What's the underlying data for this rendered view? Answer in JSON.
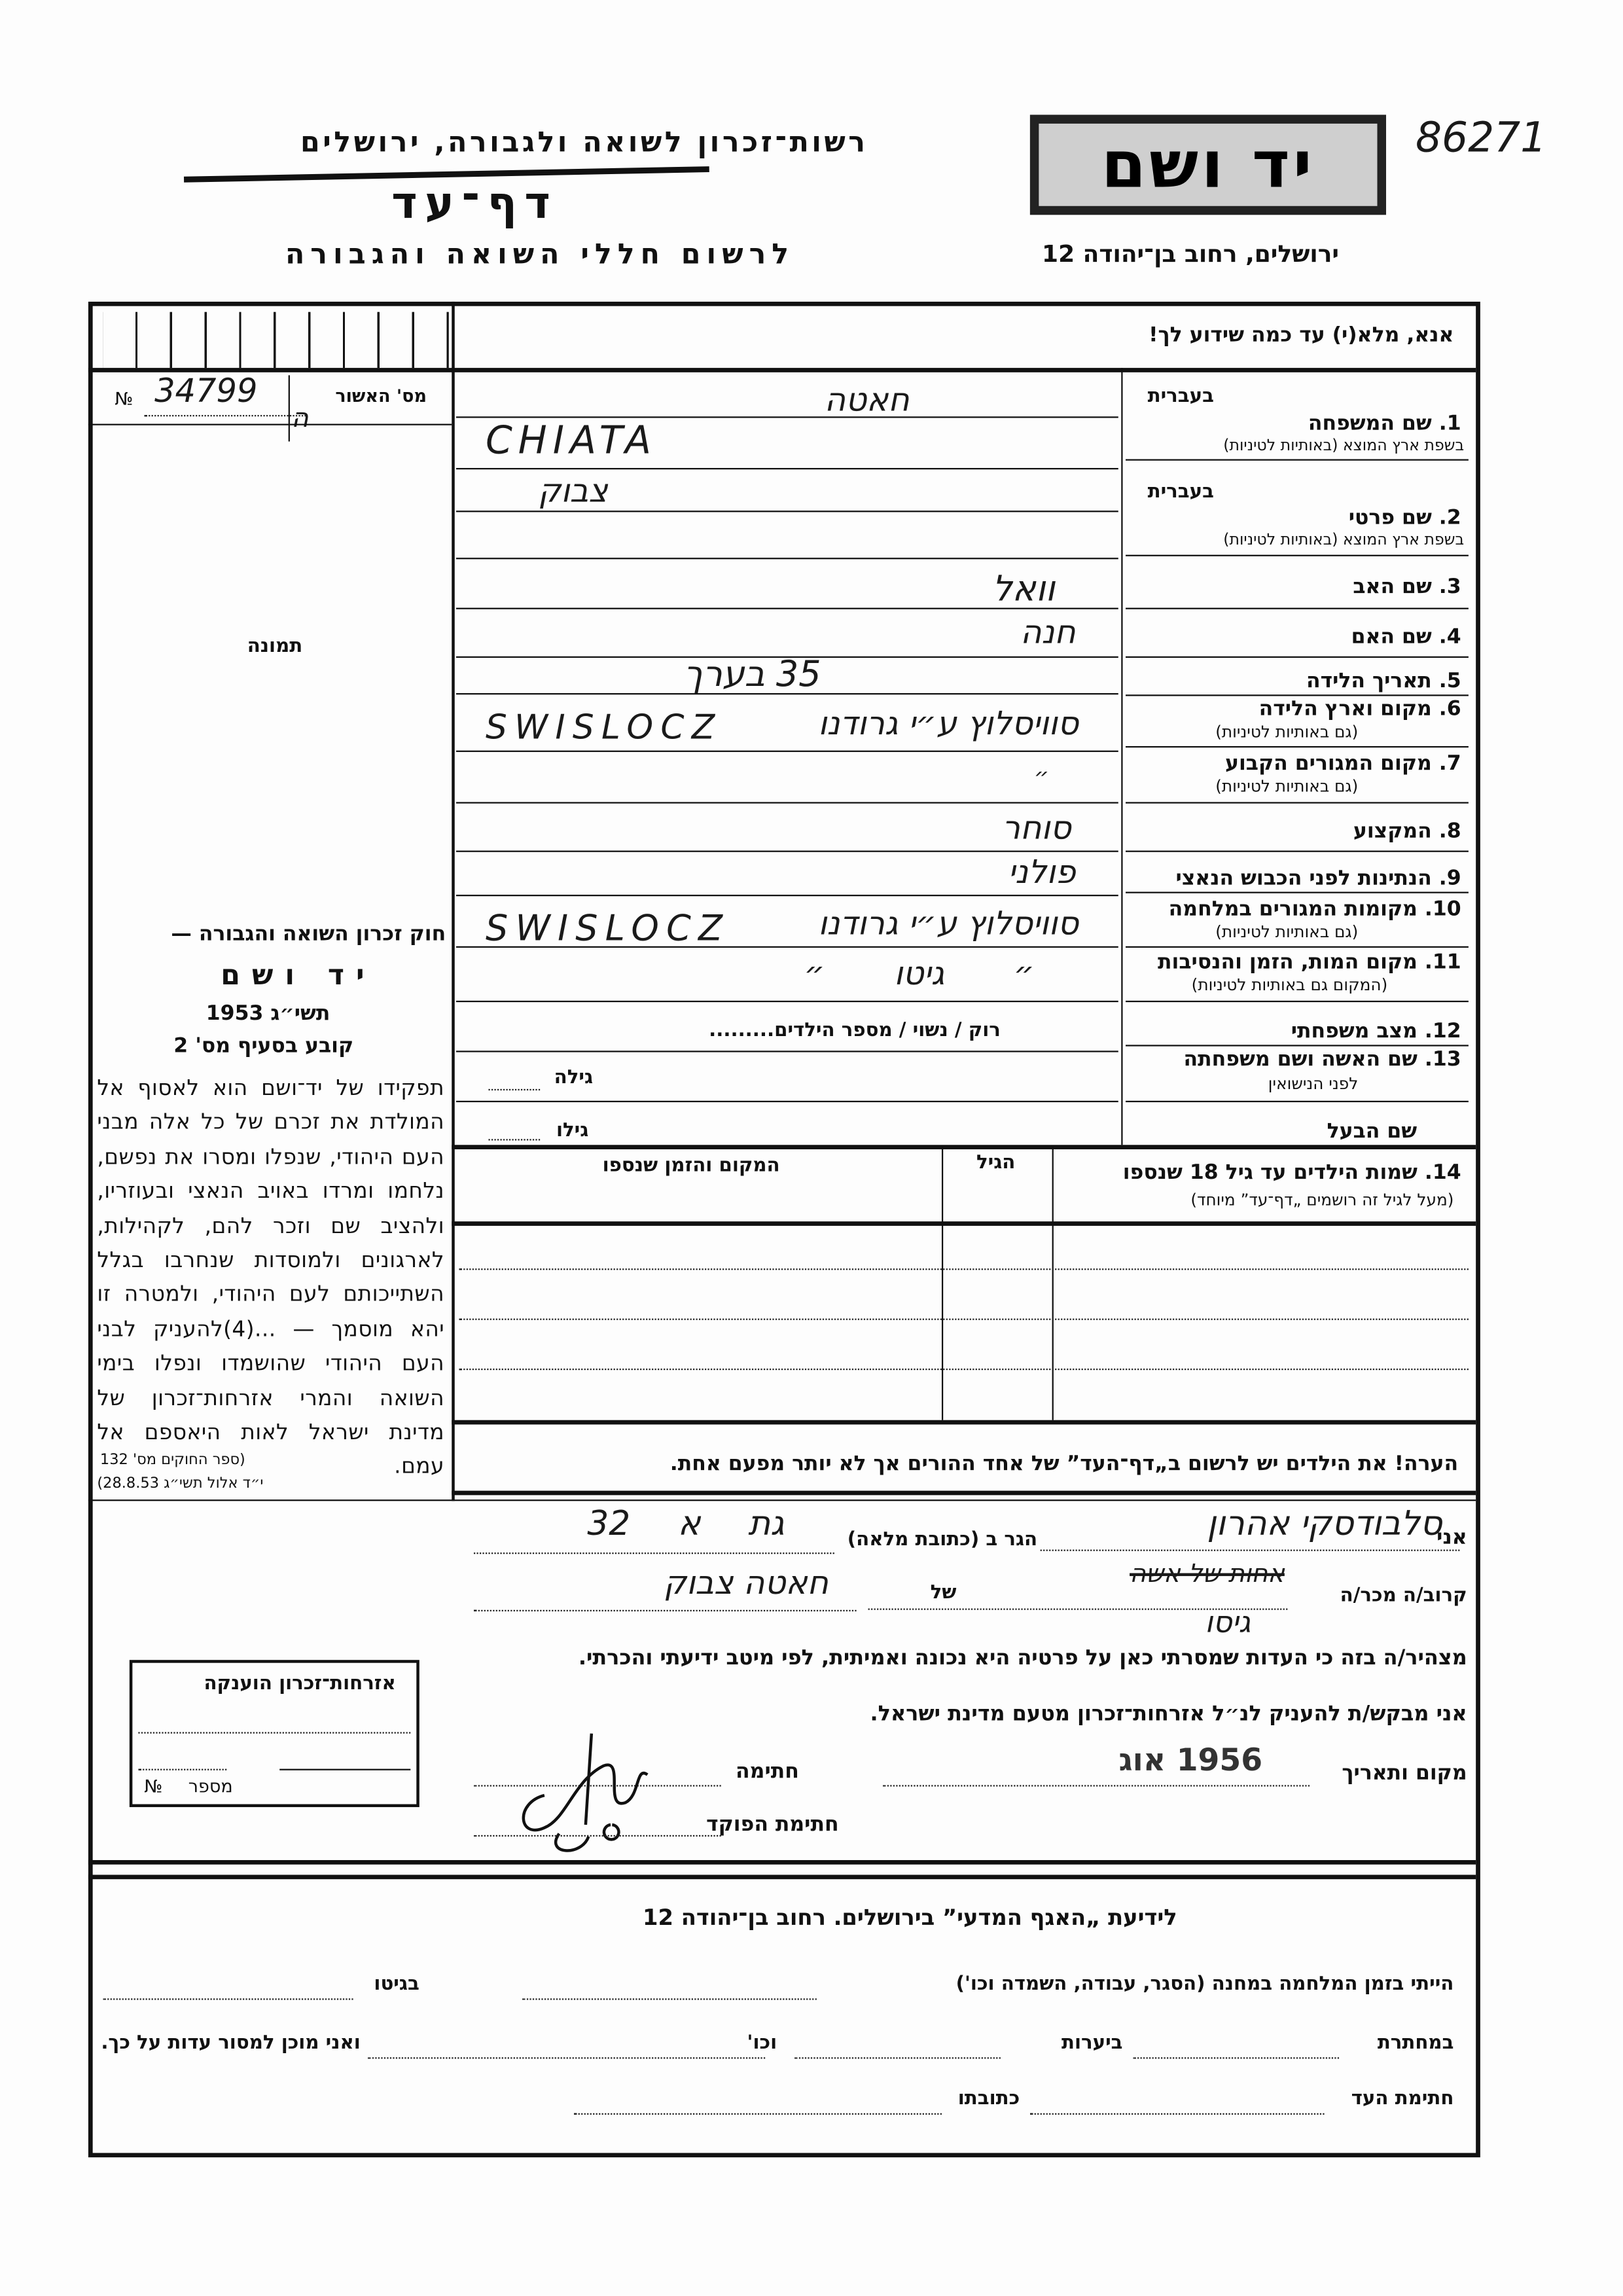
{
  "header": {
    "authority": "רשות־זכרון לשואה ולגבורה, ירושלים",
    "title": "דף־עד",
    "subtitle": "לרשום חללי השואה והגבורה",
    "logo": "יד ושם",
    "address": "ירושלים, רחוב בן־יהודה 12",
    "file_number": "86271"
  },
  "form": {
    "instruction": "אנא, מלא(י) עד כמה שידוע לך!",
    "registration": {
      "label": "מס' האשור",
      "no_sign": "№",
      "value": "34799",
      "mark": "ה"
    },
    "photo_label": "תמונה",
    "law": {
      "title": "חוק זכרון השואה והגבורה —",
      "name": "יד ושם",
      "year": "תשי״ג 1953",
      "clause": "קובע בסעיף מס' 2",
      "body": "תפקידו של יד־ושם הוא לאסוף אל המולדת את זכרם של כל אלה מבני העם היהודי, שנפלו ומסרו את נפשם, נלחמו ומרדו באויב הנאצי ובעוזריו, ולהציב שם וזכר להם, לקהילות, לארגונים ולמוסדות שנחרבו בגלל השתייכותם לעם היהודי, ולמטרה זו יהא מוסמך — ...(4)להעניק לבני העם היהודי שהושמדו ונפלו בימי השואה והמרי אזרחות־זכרון של מדינת ישראל לאות היאספם אל עמם.",
      "citation_1": "(ספר החוקים מס' 132",
      "citation_2": "י״ד אלול תשי״ג 28.8.53)"
    },
    "fields": {
      "f1": {
        "label": "1. שם המשפחה",
        "hebrew_label": "בעברית",
        "latin_label": "בשפת ארץ המוצא (באותיות לטיניות)",
        "hebrew_value": "חאטה",
        "latin_value": "CHIATA"
      },
      "f2": {
        "label": "2. שם פרטי",
        "hebrew_label": "בעברית",
        "latin_label": "בשפת ארץ המוצא (באותיות לטיניות)",
        "hebrew_value": "צבוק",
        "latin_value": ""
      },
      "f3": {
        "label": "3. שם האב",
        "value": "וואל"
      },
      "f4": {
        "label": "4. שם האם",
        "value": "חנה"
      },
      "f5": {
        "label": "5. תאריך הלידה",
        "value": "35 בערך"
      },
      "f6": {
        "label": "6. מקום וארץ הלידה",
        "sub": "(גם באותיות לטיניות)",
        "value": "סוויסלוץ ע״י גרודנו",
        "latin_value": "SWISLOCZ"
      },
      "f7": {
        "label": "7. מקום המגורים הקבוע",
        "sub": "(גם באותיות לטיניות)",
        "value": "״"
      },
      "f8": {
        "label": "8. המקצוע",
        "value": "סוחר"
      },
      "f9": {
        "label": "9. הנתינות לפני הכבוש הנאצי",
        "value": "פולני"
      },
      "f10": {
        "label": "10. מקומות המגורים במלחמה",
        "sub": "(גם באותיות לטיניות)",
        "value": "סוויסלוץ ע״י גרודנו",
        "latin_value": "SWISLOCZ"
      },
      "f11": {
        "label": "11. מקום המות, הזמן והנסיבות",
        "sub": "(המקום גם באותיות לטיניות)",
        "value": "״ גיטו ״"
      },
      "f12": {
        "label": "12. מצב משפחתי",
        "options": "רוק / נשוי / מספר הילדים........."
      },
      "f13": {
        "label": "13. שם האשה ושם משפחתה",
        "sub": "לפני הנישואין",
        "age_label": "גילה"
      },
      "husband": {
        "label": "שם הבעל",
        "age_label": "גילו"
      }
    },
    "children": {
      "header_names": "14. שמות הילדים עד גיל 18 שנספו",
      "header_names_sub": "(מעל לגיל זה רושמים „דף־עד” מיוחד)",
      "header_age": "הגיל",
      "header_place": "המקום והזמן שנספו"
    },
    "note": "הערה!   את הילדים יש לרשום ב„דף־העד” של אחד ההורים אך לא יותר מפעם אחת.",
    "declaration": {
      "i_label": "אני",
      "witness_name": "סלבודסקי אהרון",
      "resides_label": "הגר ב (כתובת מלאה)",
      "address": "גת א 32",
      "relation_label": "קרוב/ה מכר/ה",
      "relation_crossed": "אחות של אשה",
      "relation": "גיסו",
      "of_label": "של",
      "of_name": "חאטה צבוק",
      "statement": "מצהיר/ה בזה כי העדות שמסרתי כאן על פרטיה היא נכונה ואמיתית, לפי מיטב ידיעתי והכרתי.",
      "request": "אני מבקש/ת להעניק לנ״ל אזרחות־זכרון מטעם מדינת ישראל.",
      "place_date_label": "מקום ותאריך",
      "place_date_value": "1956 אוג",
      "signature_label": "חתימה",
      "registrar_label": "חתימת הפוקד"
    },
    "citizenship_box": {
      "title": "אזרחות־זכרון הוענקה",
      "number_label": "מספר",
      "no_sign": "№"
    },
    "science_dept": {
      "title": "לידיעת „האגף המדעי” בירושלים. רחוב בן־יהודה 12",
      "line1_a": "הייתי בזמן המלחמה במחנה (הסגר, עבודה, השמדה וכו')",
      "line1_b": "בגיטו",
      "line2_a": "במחתרת",
      "line2_b": "ביערות",
      "line2_c": "וכו'",
      "line2_d": "ואני מוכן למסור עדות על כך.",
      "line3_a": "חתימת העד",
      "line3_b": "כתובתו"
    }
  }
}
